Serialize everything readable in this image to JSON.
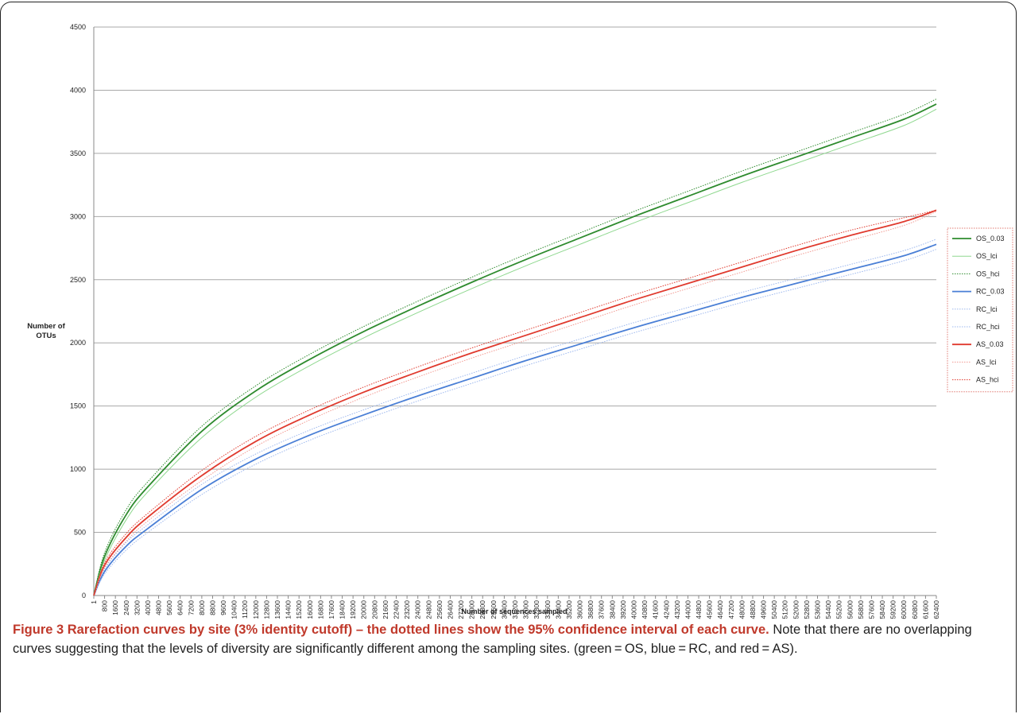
{
  "chart_data": {
    "type": "line",
    "ylabel": "Number of OTUs",
    "xlabel": "Number of sequences sampled",
    "ylim": [
      0,
      4500
    ],
    "yticks": [
      0,
      500,
      1000,
      1500,
      2000,
      2500,
      3000,
      3500,
      4000,
      4500
    ],
    "xlim": [
      1,
      62400
    ],
    "xticks": [
      1,
      800,
      1600,
      2400,
      3200,
      4000,
      4800,
      5600,
      6400,
      7200,
      8000,
      8800,
      9600,
      10400,
      11200,
      12000,
      12800,
      13600,
      14400,
      15200,
      16000,
      16800,
      17600,
      18400,
      19200,
      20000,
      20800,
      21600,
      22400,
      23200,
      24000,
      24800,
      25600,
      26400,
      27200,
      28000,
      28800,
      29600,
      30400,
      31200,
      32000,
      32800,
      33600,
      34400,
      35200,
      36000,
      36800,
      37600,
      38400,
      39200,
      40000,
      40800,
      41600,
      42400,
      43200,
      44000,
      44800,
      45600,
      46400,
      47200,
      48000,
      48800,
      49600,
      50400,
      51200,
      52000,
      52800,
      53600,
      54400,
      55200,
      56000,
      56800,
      57600,
      58400,
      59200,
      60000,
      60800,
      61600,
      62400
    ],
    "grid": true,
    "legend_position": "right",
    "x": [
      1,
      800,
      2400,
      4000,
      8000,
      12000,
      16000,
      20000,
      24000,
      28000,
      32000,
      36000,
      40000,
      44000,
      48000,
      52000,
      56000,
      60000,
      62400
    ],
    "series": [
      {
        "name": "OS_0.03",
        "color": "#2e8b2e",
        "style": "solid",
        "values": [
          0,
          310,
          640,
          860,
          1300,
          1620,
          1870,
          2090,
          2290,
          2480,
          2660,
          2830,
          3000,
          3160,
          3320,
          3470,
          3620,
          3770,
          3890
        ]
      },
      {
        "name": "OS_lci",
        "color": "#8fd88f",
        "style": "solid",
        "values": [
          0,
          280,
          600,
          820,
          1250,
          1570,
          1820,
          2040,
          2240,
          2430,
          2610,
          2780,
          2950,
          3110,
          3270,
          3420,
          3570,
          3720,
          3850
        ]
      },
      {
        "name": "OS_hci",
        "color": "#2e8b2e",
        "style": "dotted",
        "values": [
          0,
          340,
          680,
          900,
          1340,
          1660,
          1910,
          2130,
          2330,
          2520,
          2700,
          2870,
          3040,
          3200,
          3360,
          3510,
          3660,
          3810,
          3930
        ]
      },
      {
        "name": "RC_0.03",
        "color": "#4a7fd6",
        "style": "solid",
        "values": [
          0,
          190,
          390,
          530,
          840,
          1080,
          1270,
          1430,
          1580,
          1720,
          1860,
          1990,
          2120,
          2240,
          2360,
          2470,
          2580,
          2690,
          2780
        ]
      },
      {
        "name": "RC_lci",
        "color": "#9db8ee",
        "style": "dotted",
        "values": [
          0,
          170,
          360,
          500,
          800,
          1040,
          1230,
          1390,
          1540,
          1680,
          1820,
          1950,
          2080,
          2200,
          2320,
          2430,
          2540,
          2650,
          2740
        ]
      },
      {
        "name": "RC_hci",
        "color": "#9db8ee",
        "style": "dotted",
        "values": [
          0,
          210,
          420,
          560,
          880,
          1120,
          1310,
          1470,
          1620,
          1760,
          1900,
          2030,
          2160,
          2280,
          2400,
          2510,
          2620,
          2730,
          2820
        ]
      },
      {
        "name": "AS_0.03",
        "color": "#e03a2e",
        "style": "solid",
        "values": [
          0,
          240,
          460,
          620,
          950,
          1220,
          1430,
          1610,
          1770,
          1920,
          2060,
          2200,
          2340,
          2470,
          2600,
          2730,
          2850,
          2960,
          3050
        ]
      },
      {
        "name": "AS_lci",
        "color": "#f29a92",
        "style": "dotted",
        "values": [
          0,
          220,
          430,
          590,
          910,
          1180,
          1390,
          1570,
          1730,
          1880,
          2020,
          2160,
          2300,
          2430,
          2560,
          2690,
          2810,
          2930,
          3040
        ]
      },
      {
        "name": "AS_hci",
        "color": "#e03a2e",
        "style": "dotted",
        "values": [
          0,
          260,
          490,
          650,
          990,
          1260,
          1470,
          1650,
          1810,
          1960,
          2100,
          2240,
          2380,
          2510,
          2640,
          2770,
          2890,
          2990,
          3050
        ]
      }
    ]
  },
  "caption": {
    "title": "Figure 3 Rarefaction curves by site (3% identity cutoff) – the dotted lines show the 95% confidence interval of each curve.",
    "body": " Note that there are no overlapping curves suggesting that the levels of diversity are significantly different among the sampling sites. (green = OS, blue = RC, and red = AS)."
  }
}
